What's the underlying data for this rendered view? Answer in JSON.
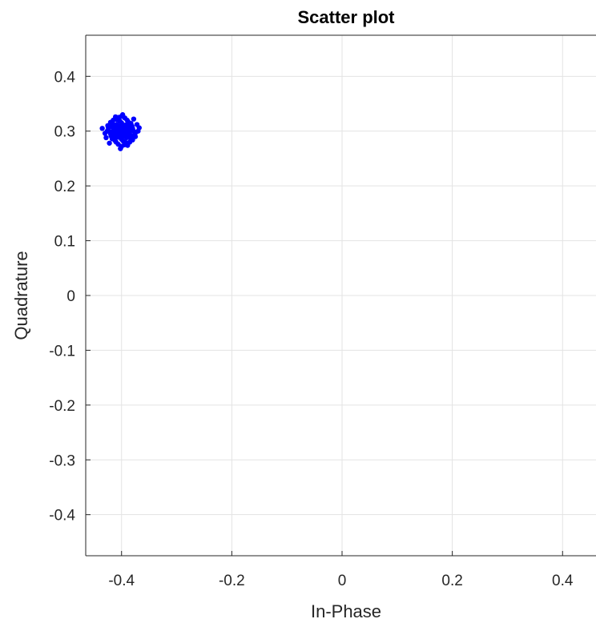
{
  "chart_data": {
    "type": "scatter",
    "title": "Scatter plot",
    "xlabel": "In-Phase",
    "ylabel": "Quadrature",
    "xlim": [
      -0.465,
      0.465
    ],
    "ylim": [
      -0.475,
      0.475
    ],
    "xticks": [
      -0.4,
      -0.2,
      0,
      0.2,
      0.4
    ],
    "xtick_labels": [
      "-0.4",
      "-0.2",
      "0",
      "0.2",
      "0.4"
    ],
    "yticks": [
      0.4,
      0.3,
      0.2,
      0.1,
      0,
      -0.1,
      -0.2,
      -0.3,
      -0.4
    ],
    "ytick_labels": [
      "0.4",
      "0.3",
      "0.2",
      "0.1",
      "0",
      "-0.1",
      "-0.2",
      "-0.3",
      "-0.4"
    ],
    "grid": true,
    "series": [
      {
        "color": "#0000ff",
        "points": [
          [
            -0.4,
            0.3
          ],
          [
            -0.405,
            0.305
          ],
          [
            -0.395,
            0.295
          ],
          [
            -0.41,
            0.31
          ],
          [
            -0.39,
            0.29
          ],
          [
            -0.415,
            0.3
          ],
          [
            -0.385,
            0.3
          ],
          [
            -0.4,
            0.315
          ],
          [
            -0.4,
            0.285
          ],
          [
            -0.42,
            0.295
          ],
          [
            -0.38,
            0.305
          ],
          [
            -0.41,
            0.28
          ],
          [
            -0.39,
            0.32
          ],
          [
            -0.425,
            0.31
          ],
          [
            -0.375,
            0.29
          ],
          [
            -0.405,
            0.325
          ],
          [
            -0.395,
            0.275
          ],
          [
            -0.435,
            0.305
          ],
          [
            -0.415,
            0.32
          ],
          [
            -0.385,
            0.28
          ],
          [
            -0.402,
            0.268
          ],
          [
            -0.398,
            0.33
          ],
          [
            -0.37,
            0.3
          ],
          [
            -0.428,
            0.288
          ],
          [
            -0.372,
            0.312
          ],
          [
            -0.412,
            0.29
          ],
          [
            -0.388,
            0.31
          ],
          [
            -0.408,
            0.298
          ],
          [
            -0.392,
            0.302
          ],
          [
            -0.418,
            0.308
          ],
          [
            -0.382,
            0.292
          ],
          [
            -0.403,
            0.318
          ],
          [
            -0.397,
            0.282
          ],
          [
            -0.422,
            0.278
          ],
          [
            -0.378,
            0.322
          ],
          [
            -0.409,
            0.312
          ],
          [
            -0.391,
            0.288
          ],
          [
            -0.413,
            0.296
          ],
          [
            -0.387,
            0.304
          ],
          [
            -0.401,
            0.293
          ],
          [
            -0.399,
            0.307
          ],
          [
            -0.417,
            0.286
          ],
          [
            -0.383,
            0.314
          ],
          [
            -0.406,
            0.276
          ],
          [
            -0.394,
            0.324
          ],
          [
            -0.426,
            0.3
          ],
          [
            -0.374,
            0.298
          ],
          [
            -0.411,
            0.326
          ],
          [
            -0.389,
            0.274
          ],
          [
            -0.404,
            0.309
          ],
          [
            -0.396,
            0.291
          ],
          [
            -0.42,
            0.316
          ],
          [
            -0.38,
            0.284
          ],
          [
            -0.43,
            0.296
          ],
          [
            -0.368,
            0.306
          ],
          [
            -0.407,
            0.289
          ],
          [
            -0.393,
            0.311
          ],
          [
            -0.414,
            0.303
          ],
          [
            -0.386,
            0.297
          ],
          [
            -0.403,
            0.301
          ],
          [
            -0.397,
            0.299
          ],
          [
            -0.419,
            0.291
          ],
          [
            -0.381,
            0.309
          ],
          [
            -0.408,
            0.321
          ],
          [
            -0.392,
            0.279
          ],
          [
            -0.424,
            0.306
          ],
          [
            -0.376,
            0.294
          ],
          [
            -0.412,
            0.283
          ],
          [
            -0.388,
            0.317
          ],
          [
            -0.4,
            0.327
          ],
          [
            -0.4,
            0.272
          ],
          [
            -0.416,
            0.313
          ],
          [
            -0.384,
            0.287
          ],
          [
            -0.406,
            0.295
          ],
          [
            -0.394,
            0.305
          ],
          [
            -0.421,
            0.299
          ],
          [
            -0.379,
            0.301
          ],
          [
            -0.41,
            0.304
          ],
          [
            -0.39,
            0.296
          ],
          [
            -0.402,
            0.288
          ]
        ]
      }
    ]
  }
}
